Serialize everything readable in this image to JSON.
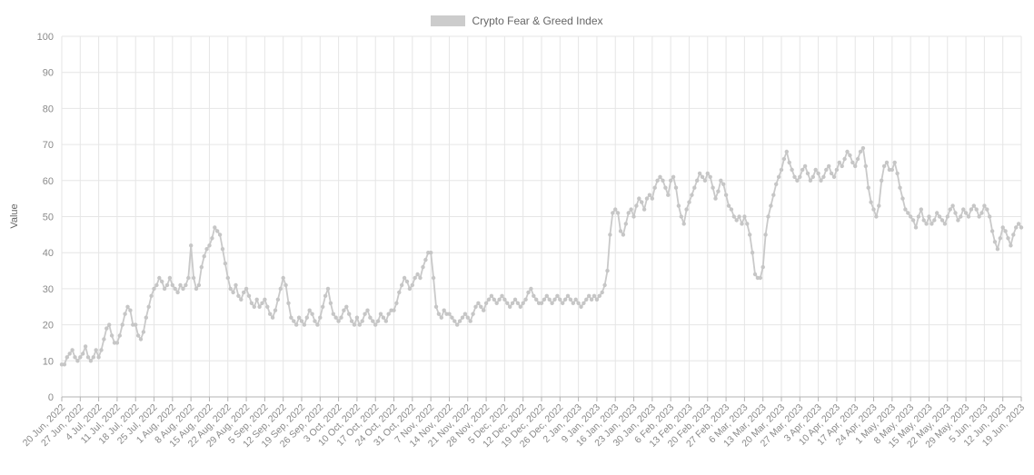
{
  "chart_data": {
    "type": "line",
    "title": "Crypto Fear & Greed Index",
    "xlabel": "",
    "ylabel": "Value",
    "ylim": [
      0,
      100
    ],
    "ytick_step": 10,
    "grid": true,
    "legend_position": "top-center",
    "points_per_tick": 7,
    "x_tick_labels": [
      "20 Jun, 2022",
      "27 Jun, 2022",
      "4 Jul, 2022",
      "11 Jul, 2022",
      "18 Jul, 2022",
      "25 Jul, 2022",
      "1 Aug, 2022",
      "8 Aug, 2022",
      "15 Aug, 2022",
      "22 Aug, 2022",
      "29 Aug, 2022",
      "5 Sep, 2022",
      "12 Sep, 2022",
      "19 Sep, 2022",
      "26 Sep, 2022",
      "3 Oct, 2022",
      "10 Oct, 2022",
      "17 Oct, 2022",
      "24 Oct, 2022",
      "31 Oct, 2022",
      "7 Nov, 2022",
      "14 Nov, 2022",
      "21 Nov, 2022",
      "28 Nov, 2022",
      "5 Dec, 2022",
      "12 Dec, 2022",
      "19 Dec, 2022",
      "26 Dec, 2022",
      "2 Jan, 2023",
      "9 Jan, 2023",
      "16 Jan, 2023",
      "23 Jan, 2023",
      "30 Jan, 2023",
      "6 Feb, 2023",
      "13 Feb, 2023",
      "20 Feb, 2023",
      "27 Feb, 2023",
      "6 Mar, 2023",
      "13 Mar, 2023",
      "20 Mar, 2023",
      "27 Mar, 2023",
      "3 Apr, 2023",
      "10 Apr, 2023",
      "17 Apr, 2023",
      "24 Apr, 2023",
      "1 May, 2023",
      "8 May, 2023",
      "15 May, 2023",
      "22 May, 2023",
      "29 May, 2023",
      "5 Jun, 2023",
      "12 Jun, 2023",
      "19 Jun, 2023"
    ],
    "series": [
      {
        "name": "Crypto Fear & Greed Index",
        "values": [
          9,
          9,
          11,
          12,
          13,
          11,
          10,
          11,
          12,
          14,
          11,
          10,
          11,
          13,
          11,
          13,
          16,
          19,
          20,
          17,
          15,
          15,
          17,
          20,
          23,
          25,
          24,
          20,
          20,
          17,
          16,
          18,
          22,
          25,
          28,
          30,
          31,
          33,
          32,
          30,
          31,
          33,
          31,
          30,
          29,
          31,
          30,
          31,
          33,
          42,
          33,
          30,
          31,
          36,
          39,
          41,
          42,
          44,
          47,
          46,
          45,
          41,
          37,
          33,
          30,
          29,
          31,
          28,
          27,
          29,
          30,
          28,
          26,
          25,
          27,
          25,
          26,
          27,
          25,
          23,
          22,
          24,
          27,
          30,
          33,
          31,
          26,
          22,
          21,
          20,
          22,
          21,
          20,
          22,
          24,
          23,
          21,
          20,
          22,
          25,
          28,
          30,
          26,
          23,
          22,
          21,
          22,
          24,
          25,
          23,
          21,
          20,
          22,
          20,
          21,
          23,
          24,
          22,
          21,
          20,
          21,
          23,
          22,
          21,
          23,
          24,
          24,
          26,
          29,
          31,
          33,
          32,
          30,
          31,
          33,
          34,
          33,
          36,
          38,
          40,
          40,
          33,
          25,
          23,
          22,
          24,
          23,
          23,
          22,
          21,
          20,
          21,
          22,
          23,
          22,
          21,
          23,
          25,
          26,
          25,
          24,
          26,
          27,
          28,
          27,
          26,
          27,
          28,
          27,
          26,
          25,
          26,
          27,
          26,
          25,
          26,
          27,
          29,
          30,
          28,
          27,
          26,
          26,
          27,
          28,
          27,
          26,
          27,
          28,
          27,
          26,
          27,
          28,
          27,
          26,
          27,
          26,
          25,
          26,
          27,
          28,
          27,
          28,
          27,
          28,
          29,
          31,
          35,
          45,
          51,
          52,
          51,
          46,
          45,
          48,
          51,
          52,
          50,
          53,
          55,
          54,
          52,
          55,
          56,
          55,
          58,
          60,
          61,
          60,
          58,
          56,
          60,
          61,
          58,
          53,
          50,
          48,
          52,
          54,
          56,
          58,
          60,
          62,
          61,
          60,
          62,
          61,
          58,
          55,
          57,
          60,
          59,
          56,
          53,
          52,
          50,
          49,
          50,
          48,
          50,
          48,
          45,
          40,
          34,
          33,
          33,
          36,
          45,
          50,
          53,
          56,
          59,
          61,
          63,
          66,
          68,
          65,
          63,
          61,
          60,
          61,
          63,
          64,
          62,
          60,
          61,
          63,
          62,
          60,
          61,
          63,
          64,
          62,
          61,
          63,
          65,
          64,
          66,
          68,
          67,
          65,
          64,
          66,
          68,
          69,
          64,
          58,
          54,
          52,
          50,
          53,
          60,
          64,
          65,
          63,
          63,
          65,
          62,
          58,
          55,
          52,
          51,
          50,
          49,
          47,
          50,
          52,
          49,
          48,
          50,
          48,
          49,
          51,
          50,
          49,
          48,
          50,
          52,
          53,
          51,
          49,
          50,
          52,
          51,
          50,
          52,
          53,
          52,
          50,
          51,
          53,
          52,
          50,
          46,
          43,
          41,
          44,
          47,
          46,
          44,
          42,
          45,
          47,
          48,
          47
        ]
      }
    ],
    "colors": {
      "line": "#c9c9c9",
      "marker": "#c6c6c6",
      "grid": "#e6e6e6",
      "axis": "#b3b3b3",
      "tick_text": "#8a8a8a",
      "legend_swatch": "#cccccc"
    }
  }
}
